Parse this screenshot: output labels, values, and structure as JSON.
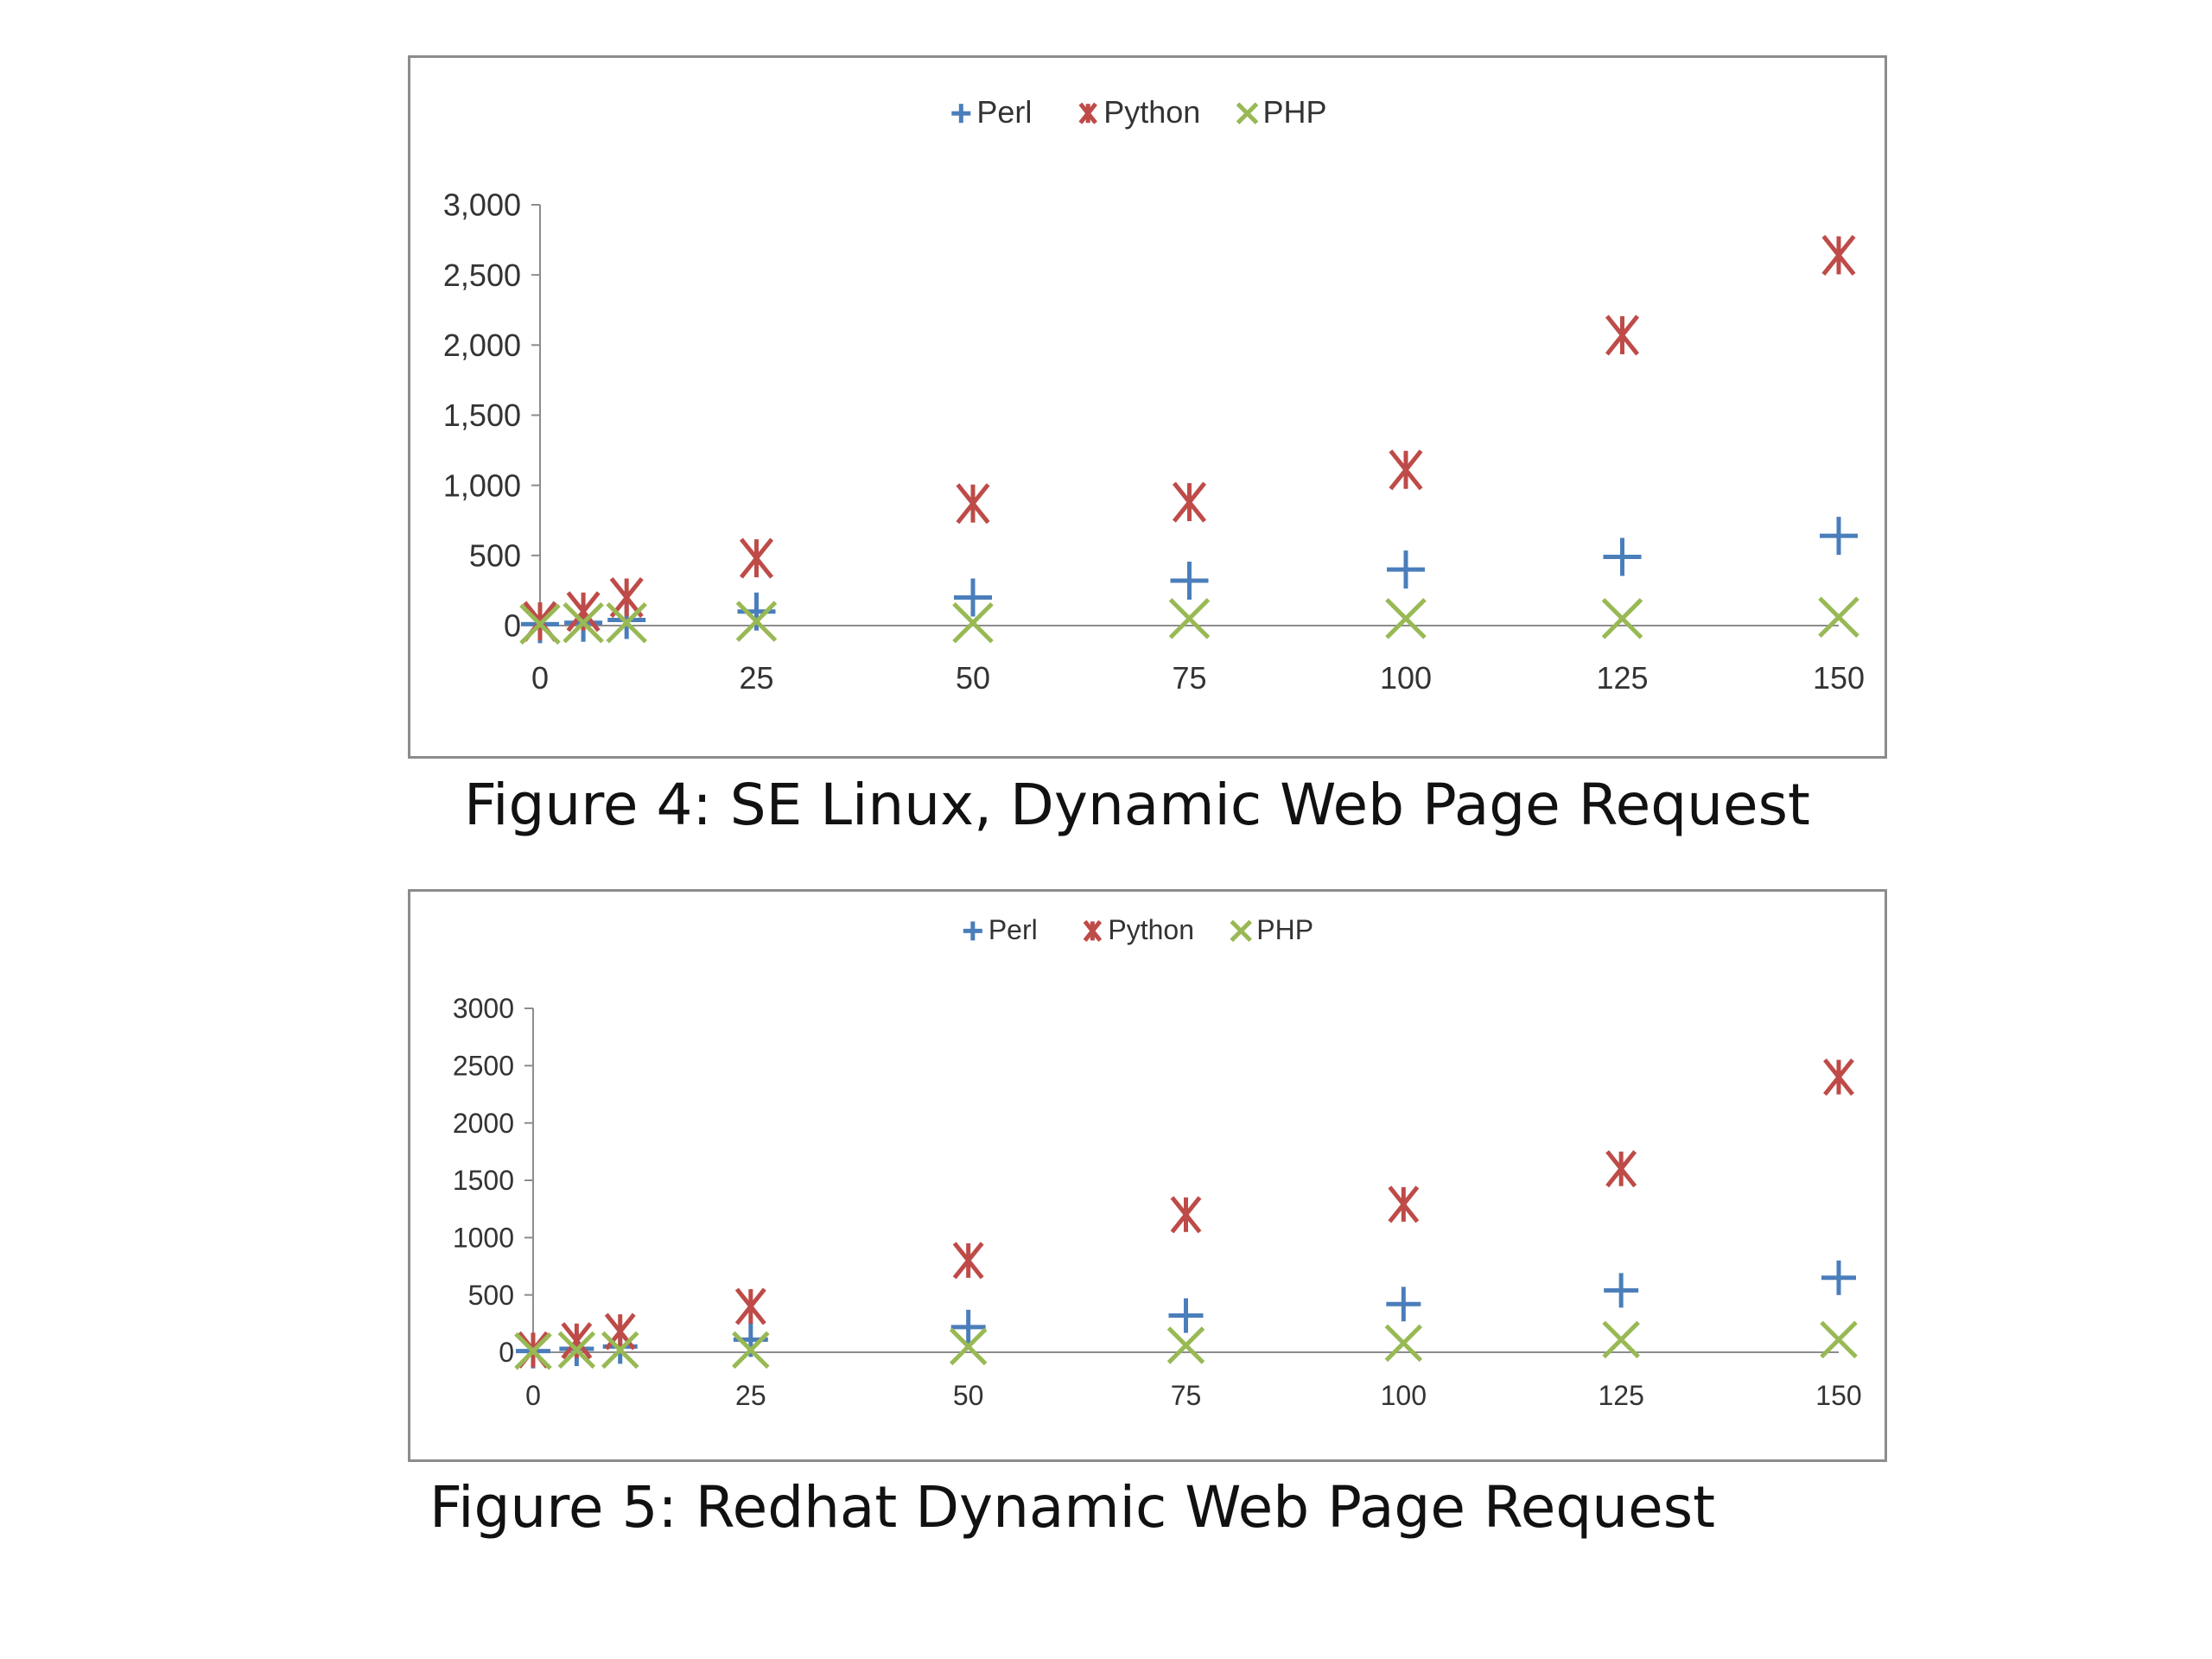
{
  "figures": [
    {
      "caption": "Figure 4: SE Linux, Dynamic Web Page Request",
      "chart_data": {
        "type": "scatter",
        "x": [
          0,
          5,
          10,
          25,
          50,
          75,
          100,
          125,
          150
        ],
        "series": [
          {
            "name": "Perl",
            "marker": "plus",
            "color": "#4a7ebb",
            "values": [
              10,
              20,
              40,
              100,
              200,
              320,
              400,
              490,
              640
            ]
          },
          {
            "name": "Python",
            "marker": "star",
            "color": "#be4b48",
            "values": [
              30,
              100,
              200,
              480,
              870,
              880,
              1110,
              2070,
              2640
            ]
          },
          {
            "name": "PHP",
            "marker": "x",
            "color": "#98b954",
            "values": [
              10,
              20,
              20,
              30,
              20,
              50,
              50,
              50,
              60
            ]
          }
        ],
        "xticks": [
          "0",
          "25",
          "50",
          "75",
          "100",
          "125",
          "150"
        ],
        "xtick_values": [
          0,
          25,
          50,
          75,
          100,
          125,
          150
        ],
        "yticks": [
          "0",
          "500",
          "1,000",
          "1,500",
          "2,000",
          "2,500",
          "3,000"
        ],
        "ylim": [
          0,
          3000
        ],
        "xlim": [
          0,
          150
        ],
        "legend": "top-center",
        "grid": false
      }
    },
    {
      "caption": "Figure 5: Redhat Dynamic Web Page Request",
      "chart_data": {
        "type": "scatter",
        "x": [
          0,
          5,
          10,
          25,
          50,
          75,
          100,
          125,
          150
        ],
        "series": [
          {
            "name": "Perl",
            "marker": "plus",
            "color": "#4a7ebb",
            "values": [
              10,
              30,
              50,
              110,
              220,
              320,
              420,
              540,
              650
            ]
          },
          {
            "name": "Python",
            "marker": "star",
            "color": "#be4b48",
            "values": [
              20,
              100,
              180,
              400,
              800,
              1200,
              1290,
              1600,
              2400
            ]
          },
          {
            "name": "PHP",
            "marker": "x",
            "color": "#98b954",
            "values": [
              10,
              20,
              20,
              20,
              50,
              60,
              80,
              110,
              110
            ]
          }
        ],
        "xticks": [
          "0",
          "25",
          "50",
          "75",
          "100",
          "125",
          "150"
        ],
        "xtick_values": [
          0,
          25,
          50,
          75,
          100,
          125,
          150
        ],
        "yticks": [
          "0",
          "500",
          "1000",
          "1500",
          "2000",
          "2500",
          "3000"
        ],
        "ylim": [
          0,
          3000
        ],
        "xlim": [
          0,
          150
        ],
        "legend": "top-center",
        "grid": false
      }
    }
  ]
}
